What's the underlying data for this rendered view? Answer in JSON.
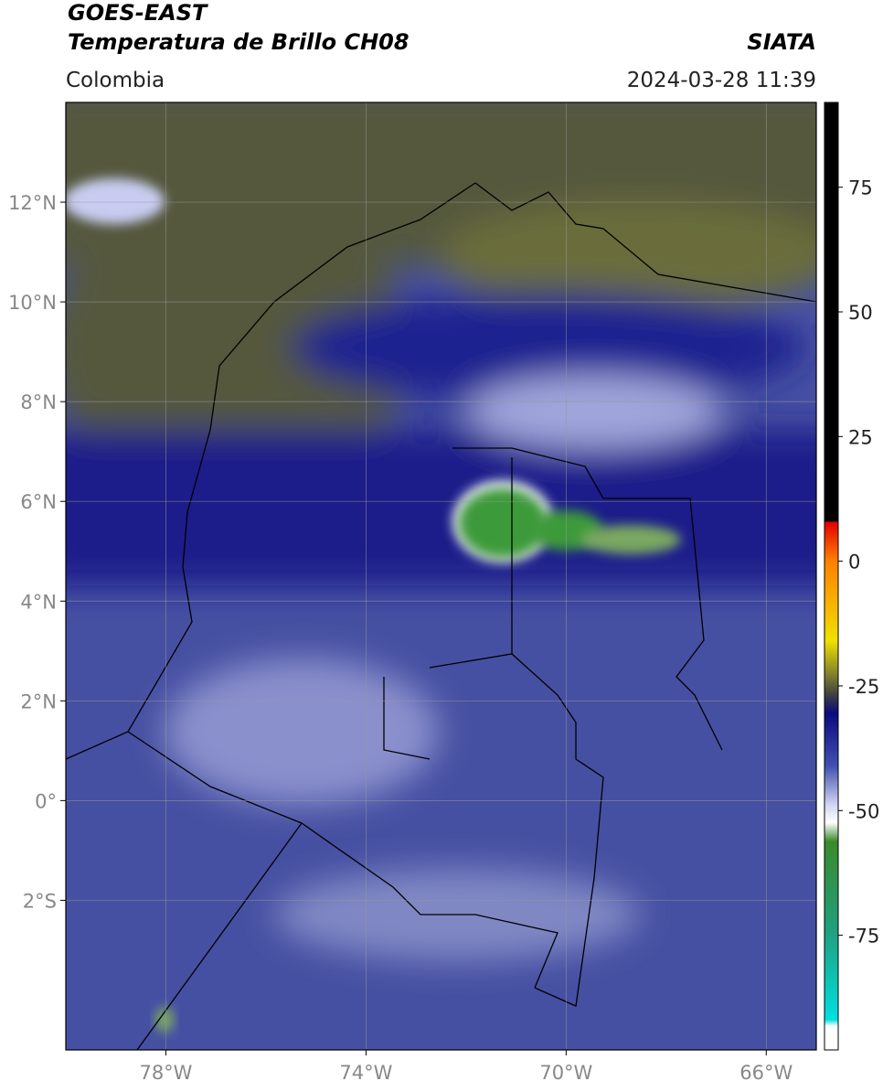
{
  "header": {
    "title": "GOES-EAST",
    "subtitle": "Temperatura de Brillo CH08",
    "source": "SIATA",
    "region": "Colombia",
    "datetime": "2024-03-28 11:39"
  },
  "map": {
    "xlim": [
      -80,
      -65
    ],
    "ylim": [
      -5,
      14
    ],
    "xticks": [
      {
        "value": -78,
        "label": "78°W"
      },
      {
        "value": -74,
        "label": "74°W"
      },
      {
        "value": -70,
        "label": "70°W"
      },
      {
        "value": -66,
        "label": "66°W"
      }
    ],
    "yticks": [
      {
        "value": 12,
        "label": "12°N"
      },
      {
        "value": 10,
        "label": "10°N"
      },
      {
        "value": 8,
        "label": "8°N"
      },
      {
        "value": 6,
        "label": "6°N"
      },
      {
        "value": 4,
        "label": "4°N"
      },
      {
        "value": 2,
        "label": "2°N"
      },
      {
        "value": 0,
        "label": "0°"
      },
      {
        "value": -2,
        "label": "2°S"
      }
    ]
  },
  "colorbar": {
    "lim": [
      -98,
      92
    ],
    "ticks": [
      75,
      50,
      25,
      0,
      -25,
      -50,
      -75
    ]
  }
}
